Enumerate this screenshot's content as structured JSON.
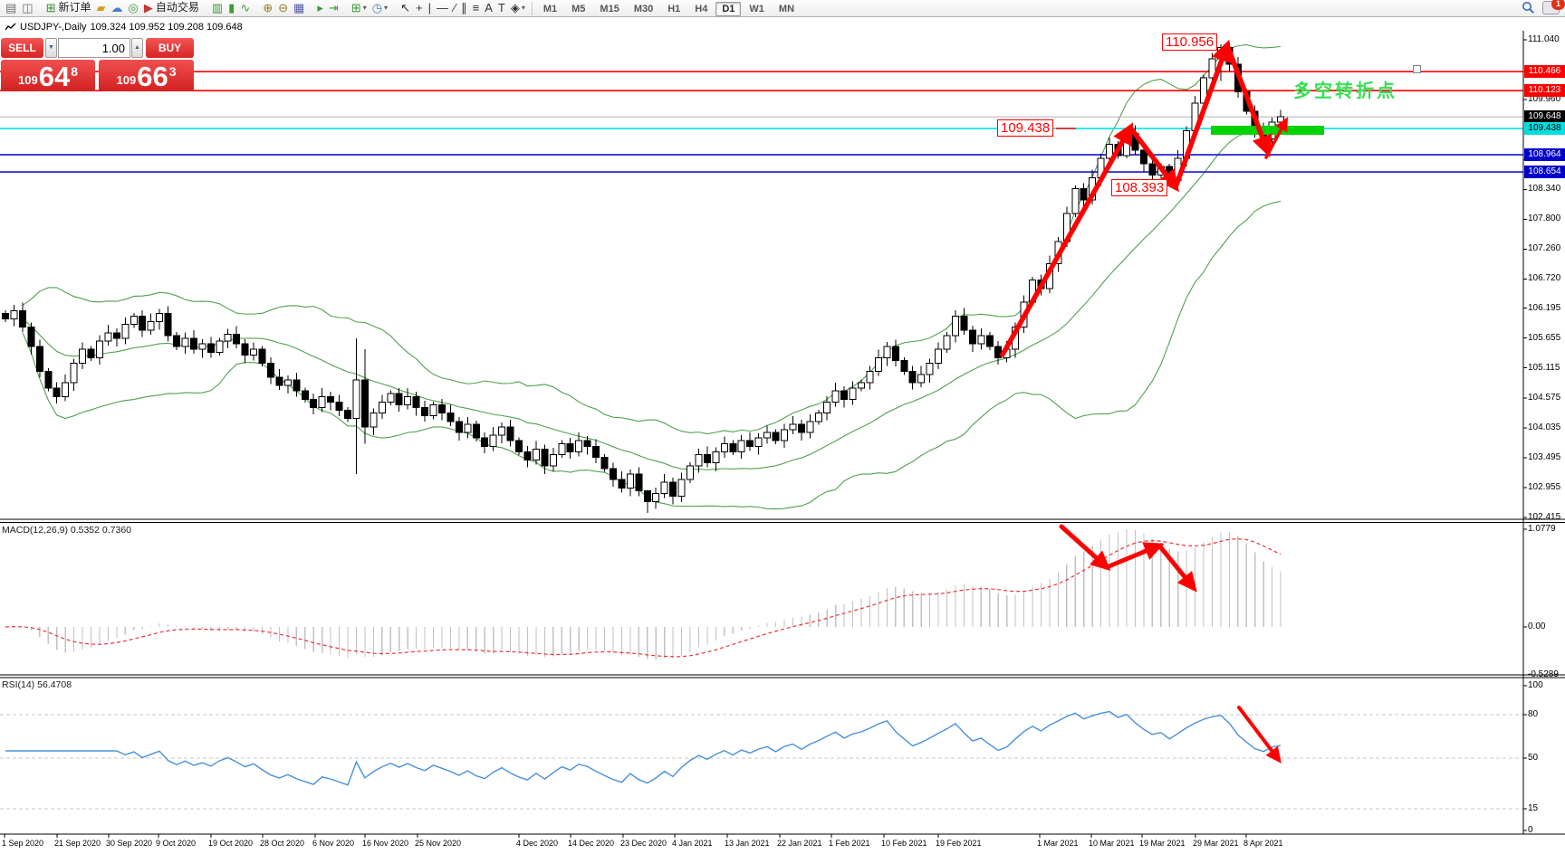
{
  "toolbar": {
    "groups": [
      {
        "icons": [
          {
            "name": "chart-window-icon",
            "glyph": "▤",
            "color": "#6f6f6f"
          },
          {
            "name": "preview-icon",
            "glyph": "◫",
            "color": "#6f6f6f"
          }
        ]
      },
      {
        "icons": [
          {
            "name": "new-order-icon",
            "glyph": "⊞",
            "color": "#2f8f2f",
            "label": "新订单"
          },
          {
            "name": "gold-bars-icon",
            "glyph": "▰",
            "color": "#d0a020"
          },
          {
            "name": "community-icon",
            "glyph": "☁",
            "color": "#4a7ec0"
          },
          {
            "name": "signals-icon",
            "glyph": "◎",
            "color": "#3a9a3a"
          },
          {
            "name": "autotrading-icon",
            "glyph": "▶",
            "color": "#c03a3a",
            "label": "自动交易"
          }
        ]
      },
      {
        "icons": [
          {
            "name": "bars-chart-icon",
            "glyph": "▥",
            "color": "#3a9a3a"
          },
          {
            "name": "candles-chart-icon",
            "glyph": "▮",
            "color": "#3a9a3a"
          },
          {
            "name": "line-chart-icon",
            "glyph": "∿",
            "color": "#3a9a3a"
          }
        ]
      },
      {
        "icons": [
          {
            "name": "zoom-in-icon",
            "glyph": "⊕",
            "color": "#8f7d22"
          },
          {
            "name": "zoom-out-icon",
            "glyph": "⊖",
            "color": "#8f7d22"
          },
          {
            "name": "tile-windows-icon",
            "glyph": "▦",
            "color": "#5a5aa8"
          }
        ]
      },
      {
        "icons": [
          {
            "name": "auto-scroll-icon",
            "glyph": "▸",
            "color": "#3a9a3a"
          },
          {
            "name": "chart-shift-icon",
            "glyph": "⇥",
            "color": "#3a9a3a"
          }
        ]
      },
      {
        "icons": [
          {
            "name": "new-chart-icon",
            "glyph": "⊞",
            "color": "#3a9a3a",
            "caret": true
          },
          {
            "name": "profiles-icon",
            "glyph": "◷",
            "color": "#4a7ec0",
            "caret": true
          }
        ]
      },
      {
        "icons": [
          {
            "name": "cursor-icon",
            "glyph": "↖",
            "color": "#333333"
          },
          {
            "name": "crosshair-icon",
            "glyph": "+",
            "color": "#333333"
          },
          {
            "name": "vertical-line-icon",
            "glyph": "|",
            "color": "#333333"
          },
          {
            "name": "horizontal-line-icon",
            "glyph": "—",
            "color": "#333333"
          },
          {
            "name": "trendline-icon",
            "glyph": "∕",
            "color": "#333333"
          },
          {
            "name": "channel-icon",
            "glyph": "∥",
            "color": "#333333"
          },
          {
            "name": "fibonacci-icon",
            "glyph": "≡",
            "color": "#333333"
          },
          {
            "name": "text-icon",
            "glyph": "A",
            "color": "#333333"
          },
          {
            "name": "label-icon",
            "glyph": "T",
            "color": "#333333"
          },
          {
            "name": "shapes-icon",
            "glyph": "◈",
            "color": "#333333",
            "caret": true
          }
        ]
      }
    ],
    "timeframes": [
      "M1",
      "M5",
      "M15",
      "M30",
      "H1",
      "H4",
      "D1",
      "W1",
      "MN"
    ],
    "active_timeframe": "D1",
    "chat_badge": "1"
  },
  "chart_window": {
    "symbol_title": "USDJPY-,Daily",
    "ohlc": "109.324 109.952 109.208 109.648"
  },
  "one_click": {
    "sell_label": "SELL",
    "buy_label": "BUY",
    "volume": "1.00",
    "sell_price_small": "109",
    "sell_price_big": "64",
    "sell_price_sup": "8",
    "buy_price_small": "109",
    "buy_price_big": "66",
    "buy_price_sup": "3"
  },
  "annotations": {
    "peak_label": "110.956",
    "support_label": "109.438",
    "trough_label": "108.393",
    "note": "多空转折点",
    "note_color": "#35df52",
    "arrow_color": "#ff0000",
    "highlight_bar_color": "#00d300"
  },
  "indicators": {
    "macd": {
      "label": "MACD(12,26,9)",
      "values": "0.5352 0.7360",
      "ticks": [
        "1.0779",
        "0.00",
        "-0.5289"
      ]
    },
    "rsi": {
      "label": "RSI(14)",
      "value": "56.4708",
      "ticks": [
        "100",
        "80",
        "50",
        "15",
        "0"
      ],
      "levels": [
        80,
        50,
        15
      ]
    }
  },
  "price_axis": {
    "ticks": [
      "111.040",
      "109.960",
      "108.880",
      "108.340",
      "107.800",
      "107.260",
      "106.720",
      "106.195",
      "105.655",
      "105.115",
      "104.575",
      "104.035",
      "103.495",
      "102.955",
      "102.415"
    ]
  },
  "date_axis": [
    "1 Sep 2020",
    "21 Sep 2020",
    "30 Sep 2020",
    "9 Oct 2020",
    "19 Oct 2020",
    "28 Oct 2020",
    "6 Nov 2020",
    "16 Nov 2020",
    "25 Nov 2020",
    "4 Dec 2020",
    "14 Dec 2020",
    "23 Dec 2020",
    "4 Jan 2021",
    "13 Jan 2021",
    "22 Jan 2021",
    "1 Feb 2021",
    "10 Feb 2021",
    "19 Feb 2021",
    "1 Mar 2021",
    "10 Mar 2021",
    "19 Mar 2021",
    "29 Mar 2021",
    "8 Apr 2021"
  ],
  "chart_data": [
    {
      "type": "candlestick",
      "symbol": "USDJPY-",
      "timeframe": "Daily",
      "title": "USDJPY-,Daily",
      "ylim": [
        102.415,
        111.04
      ],
      "first_open": 106.1,
      "closes": [
        106.0,
        106.15,
        105.85,
        105.5,
        105.05,
        104.75,
        104.6,
        104.85,
        105.2,
        105.45,
        105.3,
        105.6,
        105.75,
        105.65,
        105.9,
        106.05,
        105.8,
        105.95,
        106.1,
        105.7,
        105.5,
        105.65,
        105.45,
        105.55,
        105.4,
        105.6,
        105.72,
        105.55,
        105.35,
        105.45,
        105.2,
        104.95,
        104.8,
        104.9,
        104.7,
        104.55,
        104.4,
        104.6,
        104.5,
        104.35,
        104.2,
        104.9,
        104.05,
        104.3,
        104.5,
        104.65,
        104.45,
        104.6,
        104.4,
        104.25,
        104.45,
        104.3,
        104.15,
        103.95,
        104.1,
        103.85,
        103.7,
        103.9,
        104.05,
        103.8,
        103.6,
        103.45,
        103.65,
        103.35,
        103.55,
        103.75,
        103.6,
        103.8,
        103.7,
        103.5,
        103.3,
        103.1,
        102.95,
        103.2,
        102.9,
        102.7,
        102.85,
        103.05,
        102.8,
        103.1,
        103.35,
        103.55,
        103.4,
        103.6,
        103.75,
        103.6,
        103.8,
        103.7,
        103.85,
        103.95,
        103.8,
        104.0,
        104.1,
        103.95,
        104.15,
        104.3,
        104.5,
        104.7,
        104.55,
        104.75,
        104.85,
        105.05,
        105.3,
        105.5,
        105.25,
        105.05,
        104.85,
        105.0,
        105.2,
        105.45,
        105.7,
        106.05,
        105.8,
        105.55,
        105.7,
        105.5,
        105.3,
        105.45,
        105.85,
        106.3,
        106.7,
        106.55,
        107.0,
        107.4,
        107.9,
        108.35,
        108.15,
        108.55,
        108.9,
        109.15,
        108.95,
        109.35,
        109.05,
        108.8,
        108.6,
        108.75,
        108.5,
        108.9,
        109.4,
        109.9,
        110.35,
        110.7,
        110.9,
        110.6,
        110.1,
        109.75,
        109.4,
        109.25,
        109.55,
        109.648
      ],
      "wick_overrides": {
        "41": [
          105.65,
          103.2
        ],
        "42": [
          105.45,
          103.75
        ],
        "75": [
          102.85,
          102.5
        ],
        "131": [
          109.44,
          108.9
        ],
        "136": [
          108.8,
          108.39
        ],
        "142": [
          110.96,
          110.3
        ]
      },
      "overlays": {
        "bollinger_bands": {
          "params": "(20,2)",
          "color": "#4fa14f"
        },
        "horizontal_lines": [
          {
            "label": "110.466",
            "price": 110.466,
            "color": "#ff0000",
            "badge_bg": "#ff0000",
            "badge_fg": "#ffffff"
          },
          {
            "label": "110.123",
            "price": 110.123,
            "color": "#ff0000",
            "badge_bg": "#ff0000",
            "badge_fg": "#ffffff"
          },
          {
            "label": "109.648",
            "price": 109.648,
            "color": "#b8b8b8",
            "badge_bg": "#000000",
            "badge_fg": "#ffffff"
          },
          {
            "label": "109.438",
            "price": 109.438,
            "color": "#00e6e6",
            "badge_bg": "#00dede",
            "badge_fg": "#000000"
          },
          {
            "label": "108.964",
            "price": 108.964,
            "color": "#1515cc",
            "badge_bg": "#0000cc",
            "badge_fg": "#ffffff"
          },
          {
            "label": "108.654",
            "price": 108.654,
            "color": "#1515cc",
            "badge_bg": "#0000cc",
            "badge_fg": "#ffffff"
          }
        ]
      }
    },
    {
      "type": "macd",
      "params": [
        12,
        26,
        9
      ],
      "current_values": [
        0.5352,
        0.736
      ],
      "ylim": [
        -0.5289,
        1.0779
      ],
      "histogram_color": "#c2c2c2",
      "signal_color": "#ee3333"
    },
    {
      "type": "rsi",
      "params": [
        14
      ],
      "current_value": 56.4708,
      "ylim": [
        0,
        100
      ],
      "levels": [
        80,
        50,
        15
      ],
      "line_color": "#4a90d8"
    }
  ]
}
